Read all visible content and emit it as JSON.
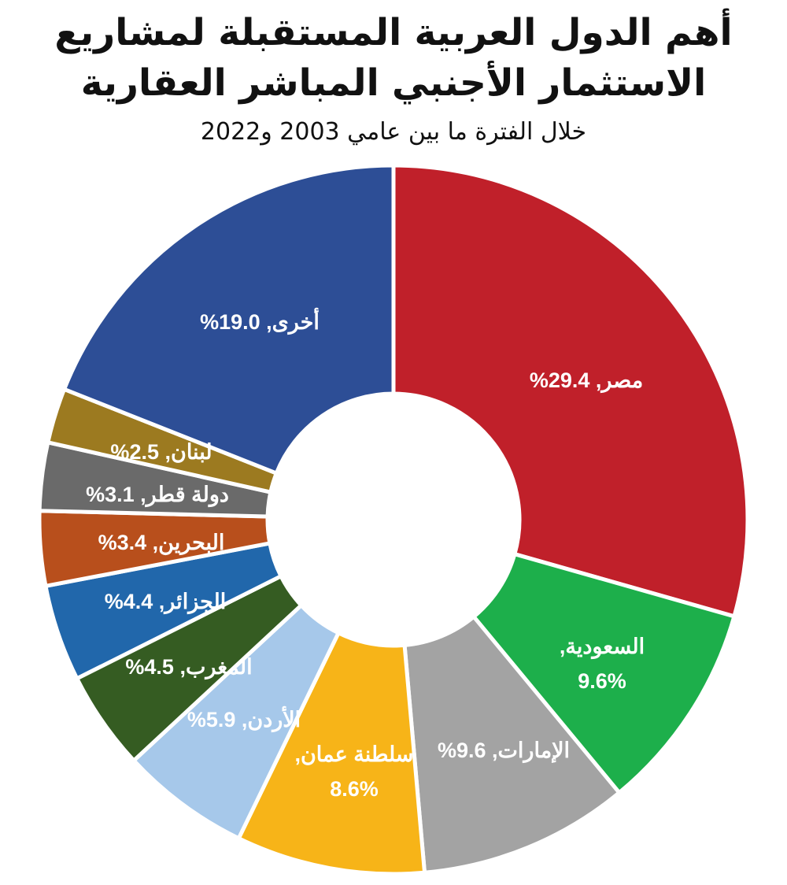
{
  "title_line1": "أهم الدول العربية المستقبلة لمشاريع",
  "title_line2": "الاستثمار الأجنبي المباشر العقارية",
  "subtitle": "خلال الفترة ما بين عامي 2003 و2022",
  "chart_data": {
    "type": "pie",
    "donut": true,
    "title": "أهم الدول العربية المستقبلة لمشاريع الاستثمار الأجنبي المباشر العقارية",
    "subtitle": "خلال الفترة ما بين عامي 2003 و2022",
    "unit": "%",
    "slices": [
      {
        "label": "مصر",
        "value": 29.4,
        "color": "#c0202a",
        "text": "مصر, 29.4%"
      },
      {
        "label": "السعودية",
        "value": 9.6,
        "color": "#1daf4b",
        "text_line1": "السعودية,",
        "text_line2": "9.6%"
      },
      {
        "label": "الإمارات",
        "value": 9.6,
        "color": "#a3a3a3",
        "text": "الإمارات, 9.6%"
      },
      {
        "label": "سلطنة عمان",
        "value": 8.6,
        "color": "#f7b418",
        "text_line1": "سلطنة عمان,",
        "text_line2": "8.6%"
      },
      {
        "label": "الأردن",
        "value": 5.9,
        "color": "#a6c8ea",
        "text": "الأردن, 5.9%"
      },
      {
        "label": "المغرب",
        "value": 4.5,
        "color": "#355c22",
        "text": "المغرب, 4.5%"
      },
      {
        "label": "الجزائر",
        "value": 4.4,
        "color": "#2167ab",
        "text": "الجزائر, 4.4%"
      },
      {
        "label": "البحرين",
        "value": 3.4,
        "color": "#b84f1c",
        "text": "البحرين, 3.4%"
      },
      {
        "label": "دولة قطر",
        "value": 3.1,
        "color": "#6a6a6a",
        "text": "دولة قطر, 3.1%"
      },
      {
        "label": "لبنان",
        "value": 2.5,
        "color": "#9c7a20",
        "text": "لبنان, 2.5%"
      },
      {
        "label": "أخرى",
        "value": 19.0,
        "color": "#2d4e96",
        "text": "أخرى, 19.0%"
      }
    ]
  }
}
